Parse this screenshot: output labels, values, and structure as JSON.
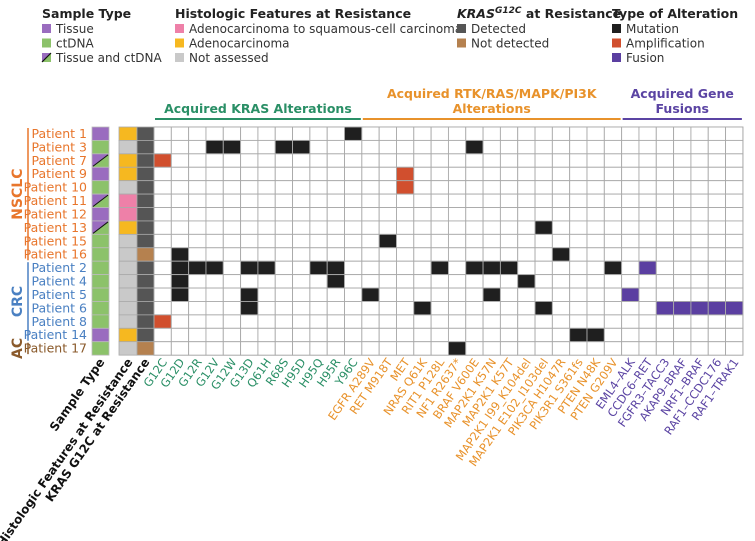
{
  "colors": {
    "tissue": "#9a6cbf",
    "ctdna": "#8cc26a",
    "squamous": "#ee80a8",
    "adeno": "#f6b820",
    "not_assessed": "#c9c9c9",
    "detected": "#555555",
    "not_detected": "#b5814f",
    "mutation": "#1f1f1f",
    "amplification": "#d14f2e",
    "fusion": "#5b3fa1",
    "kras_group": "#2a8f66",
    "rtk_group": "#e8922b",
    "fusion_group": "#5b44a3",
    "NSCLC": "#e8762c",
    "CRC": "#4a80c2",
    "AC": "#8a5a2b",
    "grid": "#a9a9a9"
  },
  "legend": [
    {
      "title": "Sample Type",
      "items": [
        {
          "key": "tissue",
          "label": "Tissue"
        },
        {
          "key": "ctdna",
          "label": "ctDNA"
        },
        {
          "key": "both",
          "label": "Tissue and ctDNA"
        }
      ]
    },
    {
      "title": "Histologic Features at Resistance",
      "items": [
        {
          "key": "squamous",
          "label": "Adenocarcinoma to squamous-cell carcinoma"
        },
        {
          "key": "adeno",
          "label": "Adenocarcinoma"
        },
        {
          "key": "not_assessed",
          "label": "Not assessed"
        }
      ]
    },
    {
      "title": "KRAS",
      "title_sup": "G12C",
      "title_rest": " at Resistance",
      "items": [
        {
          "key": "detected",
          "label": "Detected"
        },
        {
          "key": "not_detected",
          "label": "Not detected"
        }
      ]
    },
    {
      "title": "Type of Alteration",
      "items": [
        {
          "key": "mutation",
          "label": "Mutation"
        },
        {
          "key": "amplification",
          "label": "Amplification"
        },
        {
          "key": "fusion",
          "label": "Fusion"
        }
      ]
    }
  ],
  "chart_data": {
    "type": "heatmap",
    "column_groups": [
      {
        "key": "kras_group",
        "title": [
          "Acquired KRAS Alterations"
        ],
        "columns": [
          "G12C",
          "G12D",
          "G12R",
          "G12V",
          "G12W",
          "G13D",
          "Q61H",
          "R68S",
          "H95D",
          "H95Q",
          "H95R",
          "Y96C"
        ]
      },
      {
        "key": "rtk_group",
        "title": [
          "Acquired RTK/RAS/MAPK/PI3K",
          "Alterations"
        ],
        "columns": [
          "EGFR A289V",
          "RET M918T",
          "MET",
          "NRAS Q61K",
          "RIT1 P128L",
          "NF1 R2637*",
          "BRAF V600E",
          "MAP2K1 K57N",
          "MAP2K1 K57T",
          "MAP2K1 I99_K104del",
          "MAP2K1 E102_I103del",
          "PIK3CA H1047R",
          "PIK3R1 S361fs",
          "PTEN N48K",
          "PTEN G209V"
        ]
      },
      {
        "key": "fusion_group",
        "title": [
          "Acquired Gene",
          "Fusions"
        ],
        "columns": [
          "EML4–ALK",
          "CCDC6–RET",
          "FGFR3–TACC3",
          "AKAP9–BRAF",
          "NRF1–BRAF",
          "RAF1–CCDC176",
          "RAF1–TRAK1"
        ]
      }
    ],
    "annotation_columns": [
      "Sample Type",
      "Histologic Features at Resistance",
      "KRAS G12C at Resistance"
    ],
    "row_groups": [
      {
        "name": "NSCLC",
        "count": 10
      },
      {
        "name": "CRC",
        "count": 6
      },
      {
        "name": "AC",
        "count": 1
      }
    ],
    "patients": [
      {
        "name": "Patient 1",
        "sample": "tissue",
        "histology": "adeno",
        "kras": "detected",
        "alterations": [
          [
            "Y96C",
            "mutation"
          ]
        ]
      },
      {
        "name": "Patient 3",
        "sample": "ctdna",
        "histology": "not_assessed",
        "kras": "detected",
        "alterations": [
          [
            "G12V",
            "mutation"
          ],
          [
            "G12W",
            "mutation"
          ],
          [
            "R68S",
            "mutation"
          ],
          [
            "H95D",
            "mutation"
          ],
          [
            "BRAF V600E",
            "mutation"
          ]
        ]
      },
      {
        "name": "Patient 7",
        "sample": "both",
        "histology": "adeno",
        "kras": "detected",
        "alterations": [
          [
            "G12C",
            "amplification"
          ]
        ]
      },
      {
        "name": "Patient 9",
        "sample": "tissue",
        "histology": "adeno",
        "kras": "detected",
        "alterations": [
          [
            "MET",
            "amplification"
          ]
        ]
      },
      {
        "name": "Patient 10",
        "sample": "ctdna",
        "histology": "not_assessed",
        "kras": "detected",
        "alterations": [
          [
            "MET",
            "amplification"
          ]
        ]
      },
      {
        "name": "Patient 11",
        "sample": "both",
        "histology": "squamous",
        "kras": "detected",
        "alterations": []
      },
      {
        "name": "Patient 12",
        "sample": "tissue",
        "histology": "squamous",
        "kras": "detected",
        "alterations": []
      },
      {
        "name": "Patient 13",
        "sample": "both",
        "histology": "adeno",
        "kras": "detected",
        "alterations": [
          [
            "MAP2K1 E102_I103del",
            "mutation"
          ]
        ]
      },
      {
        "name": "Patient 15",
        "sample": "ctdna",
        "histology": "not_assessed",
        "kras": "detected",
        "alterations": [
          [
            "RET M918T",
            "mutation"
          ]
        ]
      },
      {
        "name": "Patient 16",
        "sample": "ctdna",
        "histology": "not_assessed",
        "kras": "not_detected",
        "alterations": [
          [
            "G12D",
            "mutation"
          ],
          [
            "PIK3CA H1047R",
            "mutation"
          ]
        ]
      },
      {
        "name": "Patient 2",
        "sample": "ctdna",
        "histology": "not_assessed",
        "kras": "detected",
        "alterations": [
          [
            "G12D",
            "mutation"
          ],
          [
            "G12R",
            "mutation"
          ],
          [
            "G12V",
            "mutation"
          ],
          [
            "G13D",
            "mutation"
          ],
          [
            "Q61H",
            "mutation"
          ],
          [
            "H95Q",
            "mutation"
          ],
          [
            "H95R",
            "mutation"
          ],
          [
            "RIT1 P128L",
            "mutation"
          ],
          [
            "BRAF V600E",
            "mutation"
          ],
          [
            "MAP2K1 K57N",
            "mutation"
          ],
          [
            "MAP2K1 K57T",
            "mutation"
          ],
          [
            "PTEN G209V",
            "mutation"
          ],
          [
            "CCDC6–RET",
            "fusion"
          ]
        ]
      },
      {
        "name": "Patient 4",
        "sample": "ctdna",
        "histology": "not_assessed",
        "kras": "detected",
        "alterations": [
          [
            "G12D",
            "mutation"
          ],
          [
            "H95R",
            "mutation"
          ],
          [
            "MAP2K1 I99_K104del",
            "mutation"
          ]
        ]
      },
      {
        "name": "Patient 5",
        "sample": "ctdna",
        "histology": "not_assessed",
        "kras": "detected",
        "alterations": [
          [
            "G12D",
            "mutation"
          ],
          [
            "G13D",
            "mutation"
          ],
          [
            "EGFR A289V",
            "mutation"
          ],
          [
            "MAP2K1 K57N",
            "mutation"
          ],
          [
            "EML4–ALK",
            "fusion"
          ]
        ]
      },
      {
        "name": "Patient 6",
        "sample": "ctdna",
        "histology": "not_assessed",
        "kras": "detected",
        "alterations": [
          [
            "G13D",
            "mutation"
          ],
          [
            "NRAS Q61K",
            "mutation"
          ],
          [
            "MAP2K1 E102_I103del",
            "mutation"
          ],
          [
            "FGFR3–TACC3",
            "fusion"
          ],
          [
            "AKAP9–BRAF",
            "fusion"
          ],
          [
            "NRF1–BRAF",
            "fusion"
          ],
          [
            "RAF1–CCDC176",
            "fusion"
          ],
          [
            "RAF1–TRAK1",
            "fusion"
          ]
        ]
      },
      {
        "name": "Patient 8",
        "sample": "ctdna",
        "histology": "not_assessed",
        "kras": "detected",
        "alterations": [
          [
            "G12C",
            "amplification"
          ]
        ]
      },
      {
        "name": "Patient 14",
        "sample": "tissue",
        "histology": "adeno",
        "kras": "detected",
        "alterations": [
          [
            "PIK3R1 S361fs",
            "mutation"
          ],
          [
            "PTEN N48K",
            "mutation"
          ]
        ]
      },
      {
        "name": "Patient 17",
        "sample": "ctdna",
        "histology": "not_assessed",
        "kras": "not_detected",
        "alterations": [
          [
            "NF1 R2637*",
            "mutation"
          ]
        ]
      }
    ]
  }
}
